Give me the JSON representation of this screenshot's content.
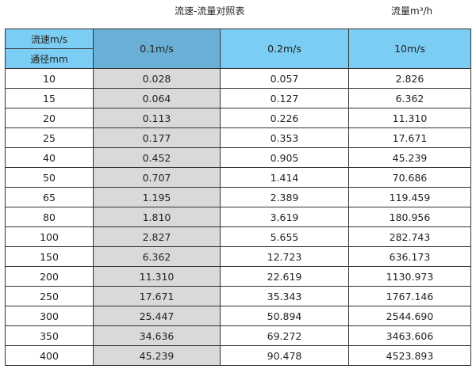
{
  "title": "流速-流量对照表",
  "unit_label": "流量m³/h",
  "header": {
    "speed_label": "流速m/s",
    "diameter_label": "通径mm",
    "columns": [
      "0.1m/s",
      "0.2m/s",
      "10m/s"
    ]
  },
  "colors": {
    "header": "#7ccdf4",
    "header_selected": "#6aafd6",
    "first_value_column": "#d9d9d9"
  },
  "rows": [
    [
      "10",
      "0.028",
      "0.057",
      "2.826"
    ],
    [
      "15",
      "0.064",
      "0.127",
      "6.362"
    ],
    [
      "20",
      "0.113",
      "0.226",
      "11.310"
    ],
    [
      "25",
      "0.177",
      "0.353",
      "17.671"
    ],
    [
      "40",
      "0.452",
      "0.905",
      "45.239"
    ],
    [
      "50",
      "0.707",
      "1.414",
      "70.686"
    ],
    [
      "65",
      "1.195",
      "2.389",
      "119.459"
    ],
    [
      "80",
      "1.810",
      "3.619",
      "180.956"
    ],
    [
      "100",
      "2.827",
      "5.655",
      "282.743"
    ],
    [
      "150",
      "6.362",
      "12.723",
      "636.173"
    ],
    [
      "200",
      "11.310",
      "22.619",
      "1130.973"
    ],
    [
      "250",
      "17.671",
      "35.343",
      "1767.146"
    ],
    [
      "300",
      "25.447",
      "50.894",
      "2544.690"
    ],
    [
      "350",
      "34.636",
      "69.272",
      "3463.606"
    ],
    [
      "400",
      "45.239",
      "90.478",
      "4523.893"
    ]
  ]
}
